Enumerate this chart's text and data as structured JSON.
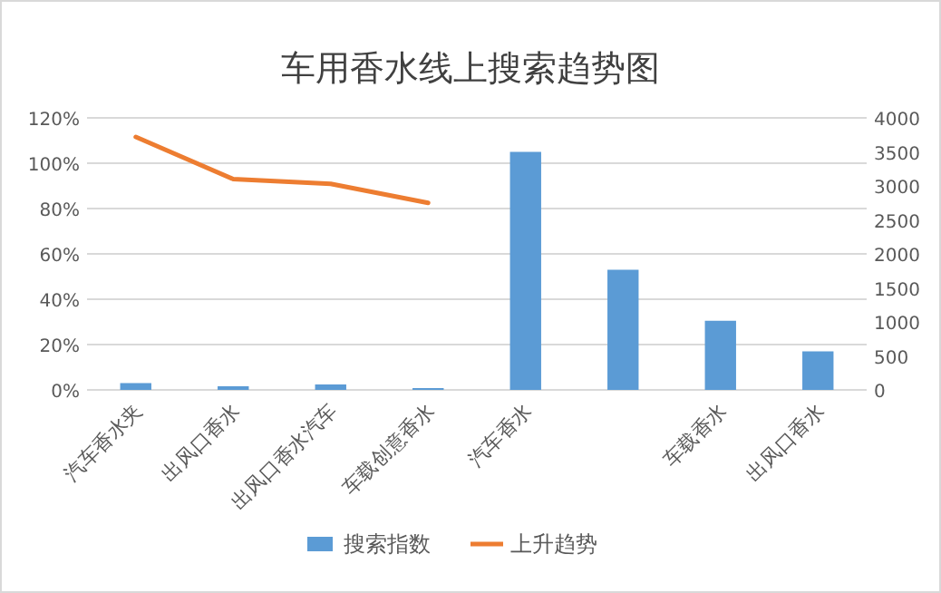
{
  "chart_data": {
    "type": "bar",
    "title": "车用香水线上搜索趋势图",
    "categories": [
      "汽车香水夹",
      "出风口香水",
      "出风口香水汽车",
      "车载创意香水",
      "汽车香水",
      null,
      "车载香水",
      "出风口香水"
    ],
    "series": [
      {
        "name": "搜索指数",
        "color": "#5b9bd5",
        "values": [
          3,
          1.6,
          2.4,
          0.8,
          105,
          53,
          30.5,
          17
        ]
      },
      {
        "name": "上升趋势",
        "type": "line",
        "axis": "y2",
        "color": "#ed7d31",
        "values": [
          3720,
          3100,
          3030,
          2750,
          null,
          null,
          null,
          null
        ]
      }
    ],
    "ylim": [
      0,
      120
    ],
    "yticks": [
      {
        "value": 0,
        "label": "0%"
      },
      {
        "value": 20,
        "label": "20%"
      },
      {
        "value": 40,
        "label": "40%"
      },
      {
        "value": 60,
        "label": "60%"
      },
      {
        "value": 80,
        "label": "80%"
      },
      {
        "value": 100,
        "label": "100%"
      },
      {
        "value": 120,
        "label": "120%"
      }
    ],
    "y2lim": [
      0,
      4000
    ],
    "y2ticks": [
      0,
      500,
      1000,
      1500,
      2000,
      2500,
      3000,
      3500,
      4000
    ],
    "grid": "y",
    "legend": "bottom",
    "marker": "none",
    "line_style": "solid"
  }
}
